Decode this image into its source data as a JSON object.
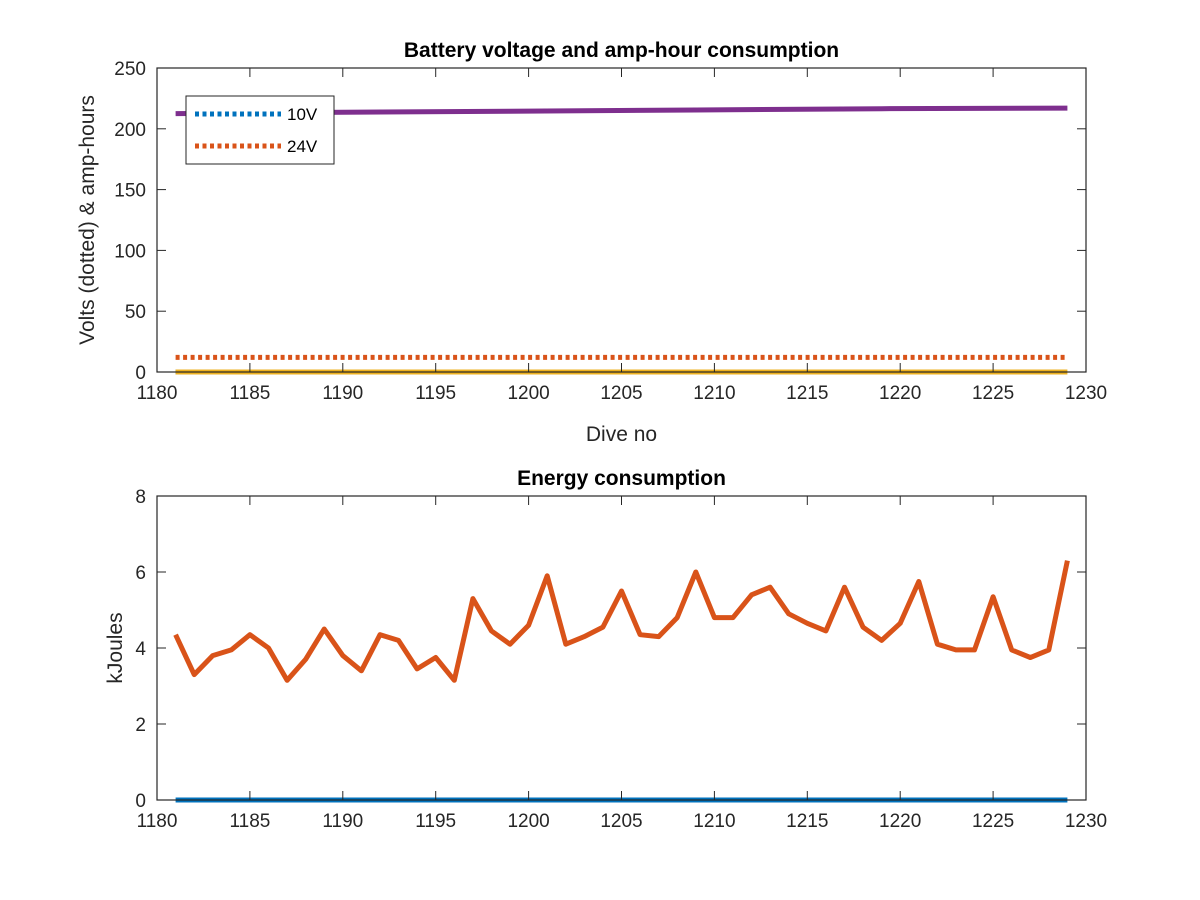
{
  "colors": {
    "series_10v": "#0072BD",
    "series_24v": "#D95319",
    "amp_hour_total": "#7E2F8E",
    "amp_hour_zero": "#EDB120",
    "energy_zero": "#0072BD",
    "energy": "#D95319",
    "axes": "#262626"
  },
  "chart_data": [
    {
      "type": "line",
      "title": "Battery voltage and amp-hour consumption",
      "xlabel": "Dive no",
      "ylabel": "Volts (dotted) & amp-hours",
      "xlim": [
        1180,
        1230
      ],
      "ylim": [
        0,
        250
      ],
      "xticks": [
        1180,
        1185,
        1190,
        1195,
        1200,
        1205,
        1210,
        1215,
        1220,
        1225,
        1230
      ],
      "yticks": [
        0,
        50,
        100,
        150,
        200,
        250
      ],
      "grid": false,
      "legend": {
        "location": "top-left",
        "entries": [
          "10V",
          "24V"
        ]
      },
      "series": [
        {
          "name": "10V",
          "style": "dotted",
          "color": "#0072BD",
          "x": [
            1181,
            1229
          ],
          "y": [
            0,
            0
          ]
        },
        {
          "name": "24V",
          "style": "dotted",
          "color": "#D95319",
          "x": [
            1181,
            1229
          ],
          "y": [
            12,
            12
          ]
        },
        {
          "style": "solid",
          "color": "#7E2F8E",
          "x": [
            1181,
            1189,
            1199,
            1209,
            1219,
            1229
          ],
          "y": [
            212.5,
            213.5,
            214.5,
            215.5,
            216.5,
            217
          ]
        },
        {
          "style": "solid",
          "color": "#EDB120",
          "x": [
            1181,
            1229
          ],
          "y": [
            0,
            0
          ]
        }
      ]
    },
    {
      "type": "line",
      "title": "Energy consumption",
      "xlabel": "",
      "ylabel": "kJoules",
      "xlim": [
        1180,
        1230
      ],
      "ylim": [
        0,
        8
      ],
      "xticks": [
        1180,
        1185,
        1190,
        1195,
        1200,
        1205,
        1210,
        1215,
        1220,
        1225,
        1230
      ],
      "yticks": [
        0,
        2,
        4,
        6,
        8
      ],
      "grid": false,
      "series": [
        {
          "style": "solid",
          "color": "#0072BD",
          "x": [
            1181,
            1229
          ],
          "y": [
            0,
            0
          ]
        },
        {
          "style": "solid",
          "color": "#D95319",
          "x": [
            1181,
            1182,
            1183,
            1184,
            1185,
            1186,
            1187,
            1188,
            1189,
            1190,
            1191,
            1192,
            1193,
            1194,
            1195,
            1196,
            1197,
            1198,
            1199,
            1200,
            1201,
            1202,
            1203,
            1204,
            1205,
            1206,
            1207,
            1208,
            1209,
            1210,
            1211,
            1212,
            1213,
            1214,
            1215,
            1216,
            1217,
            1218,
            1219,
            1220,
            1221,
            1222,
            1223,
            1224,
            1225,
            1226,
            1227,
            1228,
            1229
          ],
          "y": [
            4.35,
            3.3,
            3.8,
            3.95,
            4.35,
            4.0,
            3.15,
            3.7,
            4.5,
            3.8,
            3.4,
            4.35,
            4.2,
            3.45,
            3.75,
            3.15,
            5.3,
            4.45,
            4.1,
            4.6,
            5.9,
            4.1,
            4.3,
            4.55,
            5.5,
            4.35,
            4.3,
            4.8,
            6.0,
            4.8,
            4.8,
            5.4,
            5.6,
            4.9,
            4.65,
            4.45,
            5.6,
            4.55,
            4.2,
            4.65,
            5.75,
            4.1,
            3.95,
            3.95,
            5.35,
            3.95,
            3.75,
            3.95,
            6.3
          ]
        }
      ]
    }
  ]
}
